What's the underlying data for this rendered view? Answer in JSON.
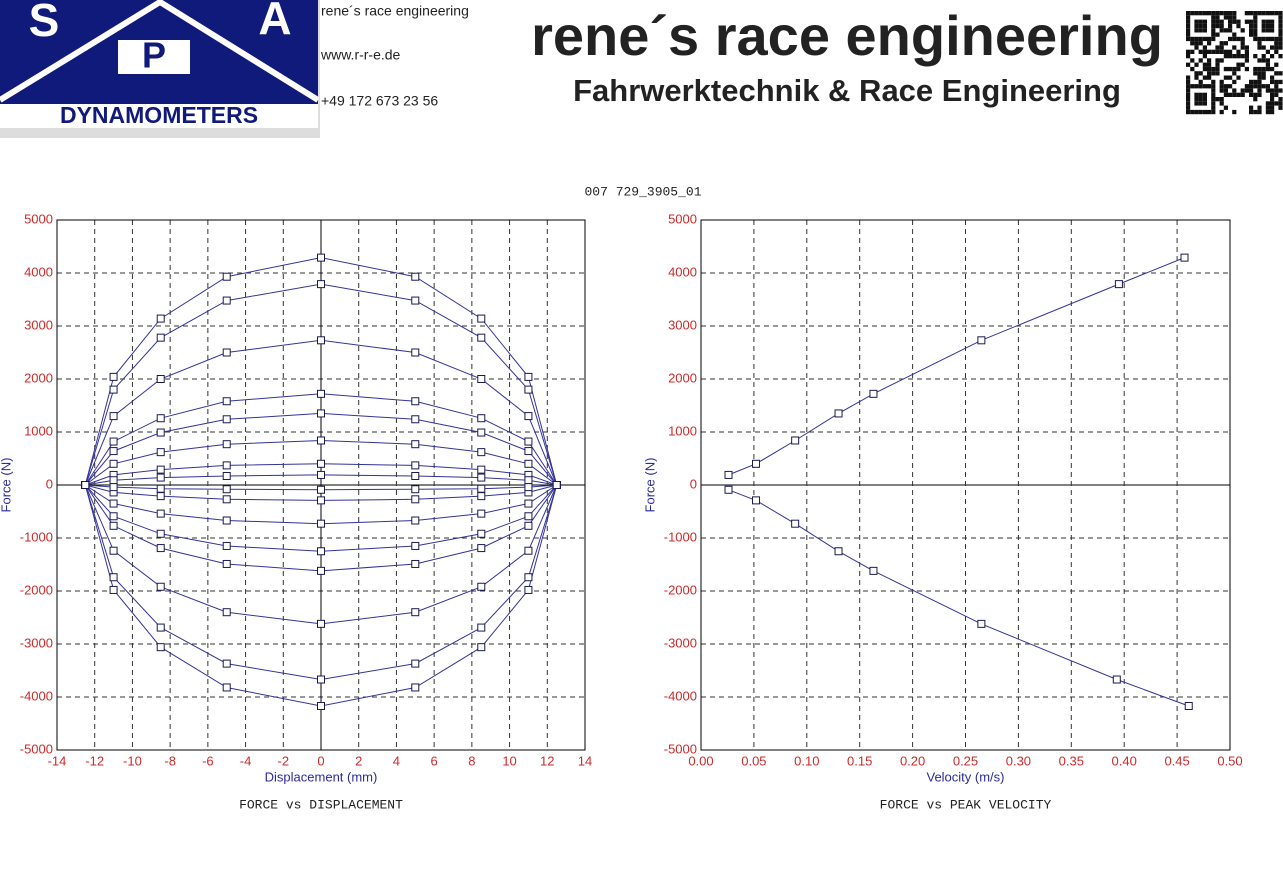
{
  "header": {
    "logo": {
      "letters": [
        "S",
        "P",
        "A"
      ],
      "caption": "DYNAMOMETERS"
    },
    "contact": [
      "rene´s race engineering",
      "www.r-r-e.de",
      "+49 172 673 23 56"
    ],
    "title": "rene´s race engineering",
    "subtitle": "Fahrwerktechnik & Race Engineering"
  },
  "report_title": "007 729_3905_01",
  "chart_data": [
    {
      "type": "line",
      "title": "FORCE vs DISPLACEMENT",
      "x_label": "Displacement (mm)",
      "y_label": "Force (N)",
      "xlim": [
        -14,
        14
      ],
      "xticks": [
        -14,
        -12,
        -10,
        -8,
        -6,
        -4,
        -2,
        0,
        2,
        4,
        6,
        8,
        10,
        12,
        14
      ],
      "ylim": [
        -5000,
        5000
      ],
      "yticks": [
        -5000,
        -4000,
        -3000,
        -2000,
        -1000,
        0,
        1000,
        2000,
        3000,
        4000,
        5000
      ],
      "grid": true,
      "markers": "square",
      "x": [
        -12.5,
        -11,
        -8.5,
        -5,
        0,
        5,
        8.5,
        11,
        12.5,
        11,
        8.5,
        5,
        0,
        -5,
        -8.5,
        -11,
        -12.5
      ],
      "series": [
        {
          "color": "#33339a",
          "values": [
            0,
            2040,
            3140,
            3930,
            4290,
            3930,
            3140,
            2040,
            0,
            -1980,
            -3060,
            -3820,
            -4170,
            -3820,
            -3060,
            -1980,
            0
          ]
        },
        {
          "color": "#33339a",
          "values": [
            0,
            1800,
            2780,
            3480,
            3790,
            3480,
            2780,
            1800,
            0,
            -1740,
            -2690,
            -3370,
            -3670,
            -3370,
            -2690,
            -1740,
            0
          ]
        },
        {
          "color": "#33339a",
          "values": [
            0,
            1300,
            2000,
            2500,
            2730,
            2500,
            2000,
            1300,
            0,
            -1240,
            -1920,
            -2400,
            -2620,
            -2400,
            -1920,
            -1240,
            0
          ]
        },
        {
          "color": "#33339a",
          "values": [
            0,
            820,
            1260,
            1580,
            1720,
            1580,
            1260,
            820,
            0,
            -770,
            -1190,
            -1490,
            -1620,
            -1490,
            -1190,
            -770,
            0
          ]
        },
        {
          "color": "#33339a",
          "values": [
            0,
            640,
            990,
            1240,
            1350,
            1240,
            990,
            640,
            0,
            -590,
            -920,
            -1150,
            -1250,
            -1150,
            -920,
            -590,
            0
          ]
        },
        {
          "color": "#33339a",
          "values": [
            0,
            400,
            620,
            770,
            840,
            770,
            620,
            400,
            0,
            -350,
            -540,
            -670,
            -730,
            -670,
            -540,
            -350,
            0
          ]
        },
        {
          "color": "#33339a",
          "values": [
            0,
            190,
            290,
            370,
            400,
            370,
            290,
            190,
            0,
            -140,
            -210,
            -270,
            -290,
            -270,
            -210,
            -140,
            0
          ]
        },
        {
          "color": "#33339a",
          "values": [
            0,
            90,
            140,
            170,
            190,
            170,
            140,
            90,
            0,
            -40,
            -70,
            -80,
            -90,
            -80,
            -70,
            -40,
            0
          ]
        }
      ]
    },
    {
      "type": "line",
      "title": "FORCE vs PEAK VELOCITY",
      "x_label": "Velocity (m/s)",
      "y_label": "Force (N)",
      "xlim": [
        0,
        0.5
      ],
      "xticks": [
        {
          "value": 0,
          "label": "0.00"
        },
        {
          "value": 0.05,
          "label": "0.05"
        },
        {
          "value": 0.1,
          "label": "0.10"
        },
        {
          "value": 0.15,
          "label": "0.15"
        },
        {
          "value": 0.2,
          "label": "0.20"
        },
        {
          "value": 0.25,
          "label": "0.25"
        },
        {
          "value": 0.3,
          "label": "0.30"
        },
        {
          "value": 0.35,
          "label": "0.35"
        },
        {
          "value": 0.4,
          "label": "0.40"
        },
        {
          "value": 0.45,
          "label": "0.45"
        },
        {
          "value": 0.5,
          "label": "0.50"
        }
      ],
      "ylim": [
        -5000,
        5000
      ],
      "yticks": [
        -5000,
        -4000,
        -3000,
        -2000,
        -1000,
        0,
        1000,
        2000,
        3000,
        4000,
        5000
      ],
      "grid": true,
      "markers": "square",
      "series": [
        {
          "color": "#33339a",
          "x": [
            0.026,
            0.052,
            0.089,
            0.13,
            0.163,
            0.265,
            0.395,
            0.457
          ],
          "values": [
            190,
            400,
            840,
            1350,
            1720,
            2730,
            3790,
            4290
          ]
        },
        {
          "color": "#33339a",
          "x": [
            0.026,
            0.052,
            0.089,
            0.13,
            0.163,
            0.265,
            0.393,
            0.461
          ],
          "values": [
            -90,
            -290,
            -730,
            -1250,
            -1620,
            -2620,
            -3670,
            -4170
          ]
        }
      ]
    }
  ]
}
